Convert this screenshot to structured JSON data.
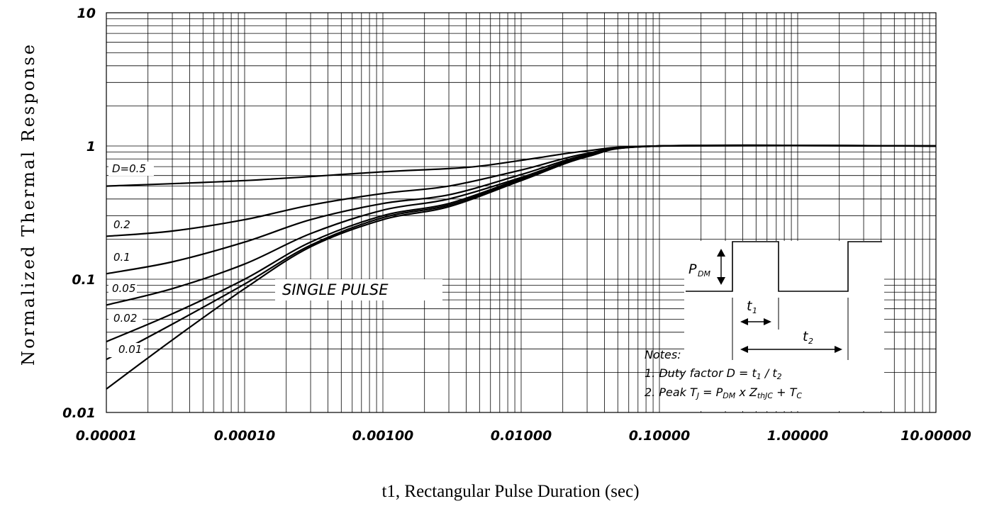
{
  "chart_data": {
    "type": "line",
    "xscale": "log",
    "yscale": "log",
    "xlim": [
      1e-05,
      10
    ],
    "ylim": [
      0.01,
      10
    ],
    "grid": true,
    "xlabel": "t1, Rectangular Pulse Duration (sec)",
    "ylabel": "Normalized Thermal Response",
    "x_tick_values": [
      1e-05,
      0.0001,
      0.001,
      0.01,
      0.1,
      1,
      10
    ],
    "x_tick_labels": [
      "0.00001",
      "0.00010",
      "0.00100",
      "0.01000",
      "0.10000",
      "1.00000",
      "10.00000"
    ],
    "y_tick_values": [
      0.01,
      0.1,
      1,
      10
    ],
    "y_tick_labels": [
      "0.01",
      "0.1",
      "1",
      "10"
    ],
    "series": [
      {
        "name": "D=0.5",
        "x": [
          1e-05,
          0.0001,
          0.001,
          0.004,
          0.01,
          0.03,
          0.1,
          10
        ],
        "y": [
          0.5,
          0.55,
          0.64,
          0.69,
          0.78,
          0.92,
          1.0,
          1.0
        ]
      },
      {
        "name": "0.2",
        "x": [
          1e-05,
          3e-05,
          0.0001,
          0.0003,
          0.001,
          0.003,
          0.01,
          0.03,
          0.1,
          10
        ],
        "y": [
          0.21,
          0.23,
          0.28,
          0.36,
          0.44,
          0.5,
          0.66,
          0.88,
          1.0,
          1.0
        ]
      },
      {
        "name": "0.1",
        "x": [
          1e-05,
          3e-05,
          0.0001,
          0.0003,
          0.001,
          0.003,
          0.01,
          0.03,
          0.1,
          10
        ],
        "y": [
          0.11,
          0.135,
          0.19,
          0.28,
          0.37,
          0.43,
          0.61,
          0.86,
          1.0,
          1.0
        ]
      },
      {
        "name": "0.05",
        "x": [
          1e-05,
          3e-05,
          0.0001,
          0.0003,
          0.001,
          0.003,
          0.01,
          0.03,
          0.1,
          10
        ],
        "y": [
          0.064,
          0.085,
          0.13,
          0.22,
          0.33,
          0.4,
          0.58,
          0.85,
          1.0,
          1.0
        ]
      },
      {
        "name": "0.02",
        "x": [
          1e-05,
          3e-05,
          0.0001,
          0.0003,
          0.001,
          0.003,
          0.01,
          0.03,
          0.1,
          10
        ],
        "y": [
          0.034,
          0.055,
          0.1,
          0.19,
          0.3,
          0.37,
          0.57,
          0.84,
          1.0,
          1.0
        ]
      },
      {
        "name": "0.01",
        "x": [
          1e-05,
          3e-05,
          0.0001,
          0.0003,
          0.001,
          0.003,
          0.01,
          0.03,
          0.1,
          10
        ],
        "y": [
          0.025,
          0.046,
          0.092,
          0.18,
          0.29,
          0.36,
          0.56,
          0.84,
          1.0,
          1.0
        ]
      },
      {
        "name": "SINGLE PULSE",
        "x": [
          1e-05,
          3e-05,
          0.0001,
          0.0003,
          0.001,
          0.003,
          0.01,
          0.03,
          0.1,
          10
        ],
        "y": [
          0.015,
          0.035,
          0.085,
          0.175,
          0.28,
          0.35,
          0.55,
          0.83,
          1.0,
          1.0
        ]
      }
    ],
    "inset": {
      "p_dm": "P",
      "p_dm_sub": "DM",
      "t1": "t",
      "t1_sub": "1",
      "t2": "t",
      "t2_sub": "2",
      "notes_title": "Notes:",
      "note1": "1. Duty factor D = t",
      "note1_sub1": "1",
      "note1_mid": " / t",
      "note1_sub2": "2",
      "note2a": "2. Peak T",
      "note2a_sub": "J",
      "note2b": " = P",
      "note2b_sub": "DM",
      "note2c": " x Z",
      "note2c_sub": "thJC",
      "note2d": " + T",
      "note2d_sub": "C"
    }
  }
}
